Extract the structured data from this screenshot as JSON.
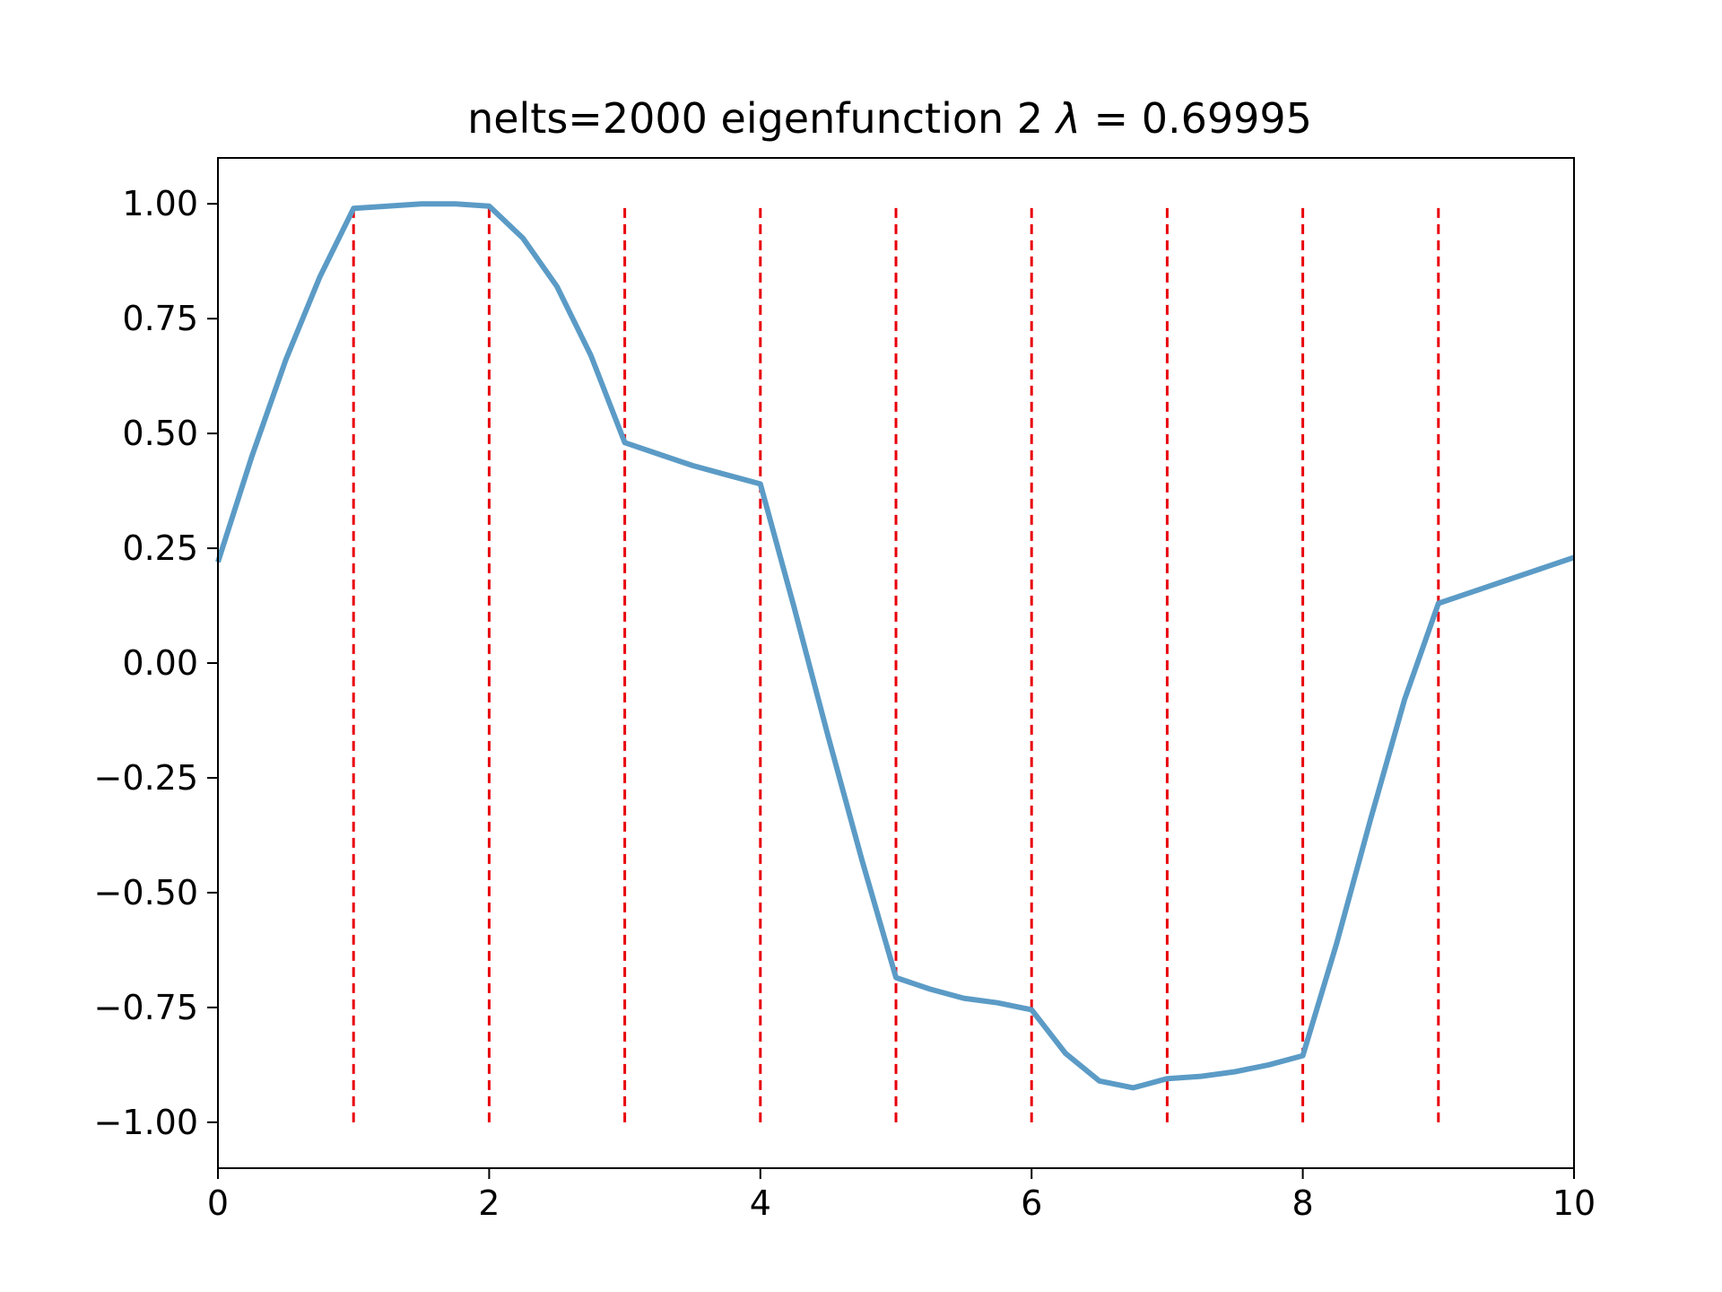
{
  "chart_data": {
    "type": "line",
    "title_prefix": "nelts=2000  eigenfunction 2  ",
    "title_lambda": "λ",
    "title_suffix": " = 0.69995",
    "xlabel": "",
    "ylabel": "",
    "xlim": [
      0,
      10
    ],
    "ylim": [
      -1.1,
      1.1
    ],
    "xticks": [
      0,
      2,
      4,
      6,
      8,
      10
    ],
    "xtick_labels": [
      "0",
      "2",
      "4",
      "6",
      "8",
      "10"
    ],
    "yticks": [
      1.0,
      0.75,
      0.5,
      0.25,
      0.0,
      -0.25,
      -0.5,
      -0.75,
      -1.0
    ],
    "ytick_labels": [
      "1.00",
      "0.75",
      "0.50",
      "0.25",
      "0.00",
      "−0.25",
      "−0.50",
      "−0.75",
      "−1.00"
    ],
    "grid": false,
    "series": [
      {
        "color": "#5b9bc6",
        "x": [
          0,
          0.25,
          0.5,
          0.75,
          1.0,
          1.25,
          1.5,
          1.75,
          2.0,
          2.25,
          2.5,
          2.75,
          3.0,
          3.25,
          3.5,
          3.75,
          4.0,
          4.25,
          4.5,
          4.75,
          5.0,
          5.25,
          5.5,
          5.75,
          6.0,
          6.25,
          6.5,
          6.75,
          7.0,
          7.25,
          7.5,
          7.75,
          8.0,
          8.25,
          8.5,
          8.75,
          9.0,
          9.25,
          9.5,
          9.75,
          10.0
        ],
        "y": [
          0.22,
          0.45,
          0.66,
          0.84,
          0.99,
          0.995,
          1.0,
          1.0,
          0.995,
          0.925,
          0.82,
          0.67,
          0.48,
          0.455,
          0.43,
          0.41,
          0.39,
          0.12,
          -0.16,
          -0.43,
          -0.685,
          -0.71,
          -0.73,
          -0.74,
          -0.755,
          -0.85,
          -0.91,
          -0.925,
          -0.905,
          -0.9,
          -0.89,
          -0.875,
          -0.855,
          -0.61,
          -0.34,
          -0.08,
          0.13,
          0.155,
          0.18,
          0.205,
          0.23
        ]
      }
    ],
    "vlines": {
      "x": [
        1,
        2,
        3,
        4,
        5,
        6,
        7,
        8,
        9
      ],
      "ymin": -1.0,
      "ymax": 1.0,
      "color": "#e8000b",
      "style": "dashed"
    }
  }
}
